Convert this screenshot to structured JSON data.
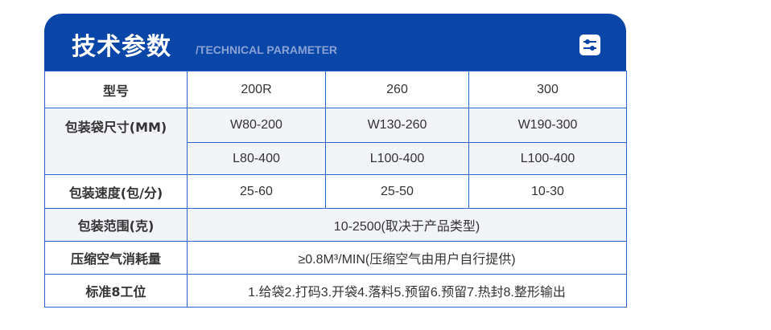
{
  "header": {
    "title": "技术参数",
    "subtitle": "/TECHNICAL PARAMETER",
    "icon": "settings-sliders-icon"
  },
  "table": {
    "model_label": "型号",
    "models": [
      "200R",
      "260",
      "300"
    ],
    "bag_size_label": "包装袋尺寸(MM)",
    "bag_width": [
      "W80-200",
      "W130-260",
      "W190-300"
    ],
    "bag_length": [
      "L80-400",
      "L100-400",
      "L100-400"
    ],
    "speed_label": "包装速度(包/分)",
    "speed": [
      "25-60",
      "25-50",
      "10-30"
    ],
    "range_label": "包装范围(克)",
    "range": "10-2500(取决于产品类型)",
    "air_label": "压缩空气消耗量",
    "air": "≥0.8M³/MIN(压缩空气由用户自行提供)",
    "stations_label": "标准8工位",
    "stations": "1.给袋2.打码3.开袋4.落料5.预留6.预留7.热封8.整形输出"
  },
  "colors": {
    "brand": "#0a45a8",
    "border": "#2a63c9",
    "row_alt": "#f3f4f8"
  }
}
